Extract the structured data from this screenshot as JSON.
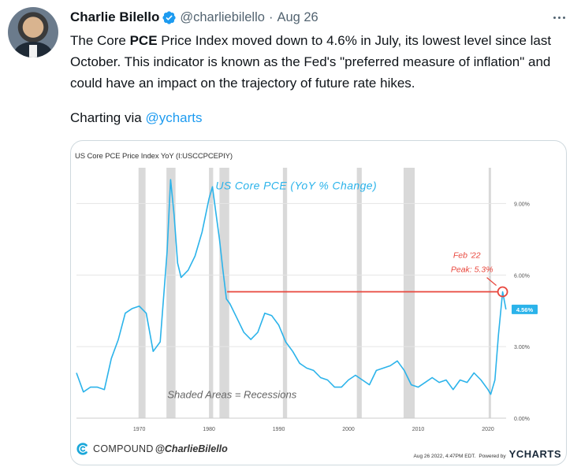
{
  "tweet": {
    "author_name": "Charlie Bilello",
    "handle": "@charliebilello",
    "separator": "·",
    "date": "Aug 26",
    "text_before": "The Core ",
    "text_bold": "PCE",
    "text_after": " Price Index moved down to 4.6% in July, its lowest level since last October. This indicator is known as the Fed's \"preferred measure of inflation\" and could have an impact on the trajectory of future rate hikes.",
    "charting_label": "Charting via ",
    "charting_link": "@ycharts"
  },
  "card": {
    "footer_brand": "COMPOUND",
    "footer_handle": "@CharlieBilello",
    "timestamp": "Aug 26 2022, 4:47PM EDT.",
    "powered_by": "Powered by",
    "ycharts": "YCHARTS"
  },
  "colors": {
    "series": "#2bb3ea",
    "annotation": "#e8463c",
    "recession": "#d9d9d9",
    "link": "#1d9bf0"
  },
  "chart_data": {
    "type": "line",
    "title": "US Core PCE Price Index YoY (I:USCCPCEPIY)",
    "inner_title": "US Core PCE (YoY % Change)",
    "xlabel": "",
    "ylabel": "",
    "x_ticks": [
      "1970",
      "1980",
      "1990",
      "2000",
      "2010",
      "2020"
    ],
    "y_ticks": [
      "0.00%",
      "3.00%",
      "6.00%",
      "9.00%"
    ],
    "xlim": [
      1961,
      2022.6
    ],
    "ylim": [
      0,
      10.5
    ],
    "last_value_label": "4.56%",
    "recessions": [
      [
        1969.9,
        1970.9
      ],
      [
        1973.9,
        1975.2
      ],
      [
        1980.0,
        1980.6
      ],
      [
        1981.5,
        1982.9
      ],
      [
        1990.6,
        1991.2
      ],
      [
        2001.2,
        2001.9
      ],
      [
        2007.9,
        2009.5
      ],
      [
        2020.1,
        2020.4
      ]
    ],
    "annotations": {
      "peak_label_1": "Feb '22",
      "peak_label_2": "Peak: 5.3%",
      "peak_x": 2022.1,
      "peak_y": 5.3,
      "recession_note": "Shaded Areas = Recessions"
    },
    "series": [
      {
        "name": "US Core PCE YoY",
        "x": [
          1961.0,
          1962.0,
          1963.0,
          1964.0,
          1965.0,
          1966.0,
          1967.0,
          1968.0,
          1969.0,
          1970.0,
          1971.0,
          1972.0,
          1973.0,
          1974.0,
          1974.5,
          1975.0,
          1975.5,
          1976.0,
          1977.0,
          1978.0,
          1979.0,
          1980.0,
          1980.5,
          1981.0,
          1981.5,
          1982.0,
          1982.5,
          1983.0,
          1984.0,
          1985.0,
          1986.0,
          1987.0,
          1988.0,
          1989.0,
          1990.0,
          1991.0,
          1992.0,
          1993.0,
          1994.0,
          1995.0,
          1996.0,
          1997.0,
          1998.0,
          1999.0,
          2000.0,
          2001.0,
          2002.0,
          2003.0,
          2004.0,
          2005.0,
          2006.0,
          2007.0,
          2008.0,
          2009.0,
          2010.0,
          2011.0,
          2012.0,
          2013.0,
          2014.0,
          2015.0,
          2016.0,
          2017.0,
          2018.0,
          2019.0,
          2020.0,
          2020.4,
          2021.0,
          2021.5,
          2022.1,
          2022.58
        ],
        "values": [
          1.9,
          1.1,
          1.3,
          1.3,
          1.2,
          2.5,
          3.3,
          4.4,
          4.6,
          4.7,
          4.4,
          2.8,
          3.2,
          7.0,
          10.0,
          8.5,
          6.5,
          5.9,
          6.2,
          6.8,
          7.8,
          9.2,
          9.7,
          8.6,
          7.5,
          6.2,
          5.0,
          4.8,
          4.2,
          3.6,
          3.3,
          3.6,
          4.4,
          4.3,
          3.9,
          3.2,
          2.8,
          2.3,
          2.1,
          2.0,
          1.7,
          1.6,
          1.3,
          1.3,
          1.6,
          1.8,
          1.6,
          1.4,
          2.0,
          2.1,
          2.2,
          2.4,
          2.0,
          1.4,
          1.3,
          1.5,
          1.7,
          1.5,
          1.6,
          1.2,
          1.6,
          1.5,
          1.9,
          1.6,
          1.2,
          1.0,
          1.6,
          3.5,
          5.3,
          4.56
        ]
      }
    ]
  }
}
